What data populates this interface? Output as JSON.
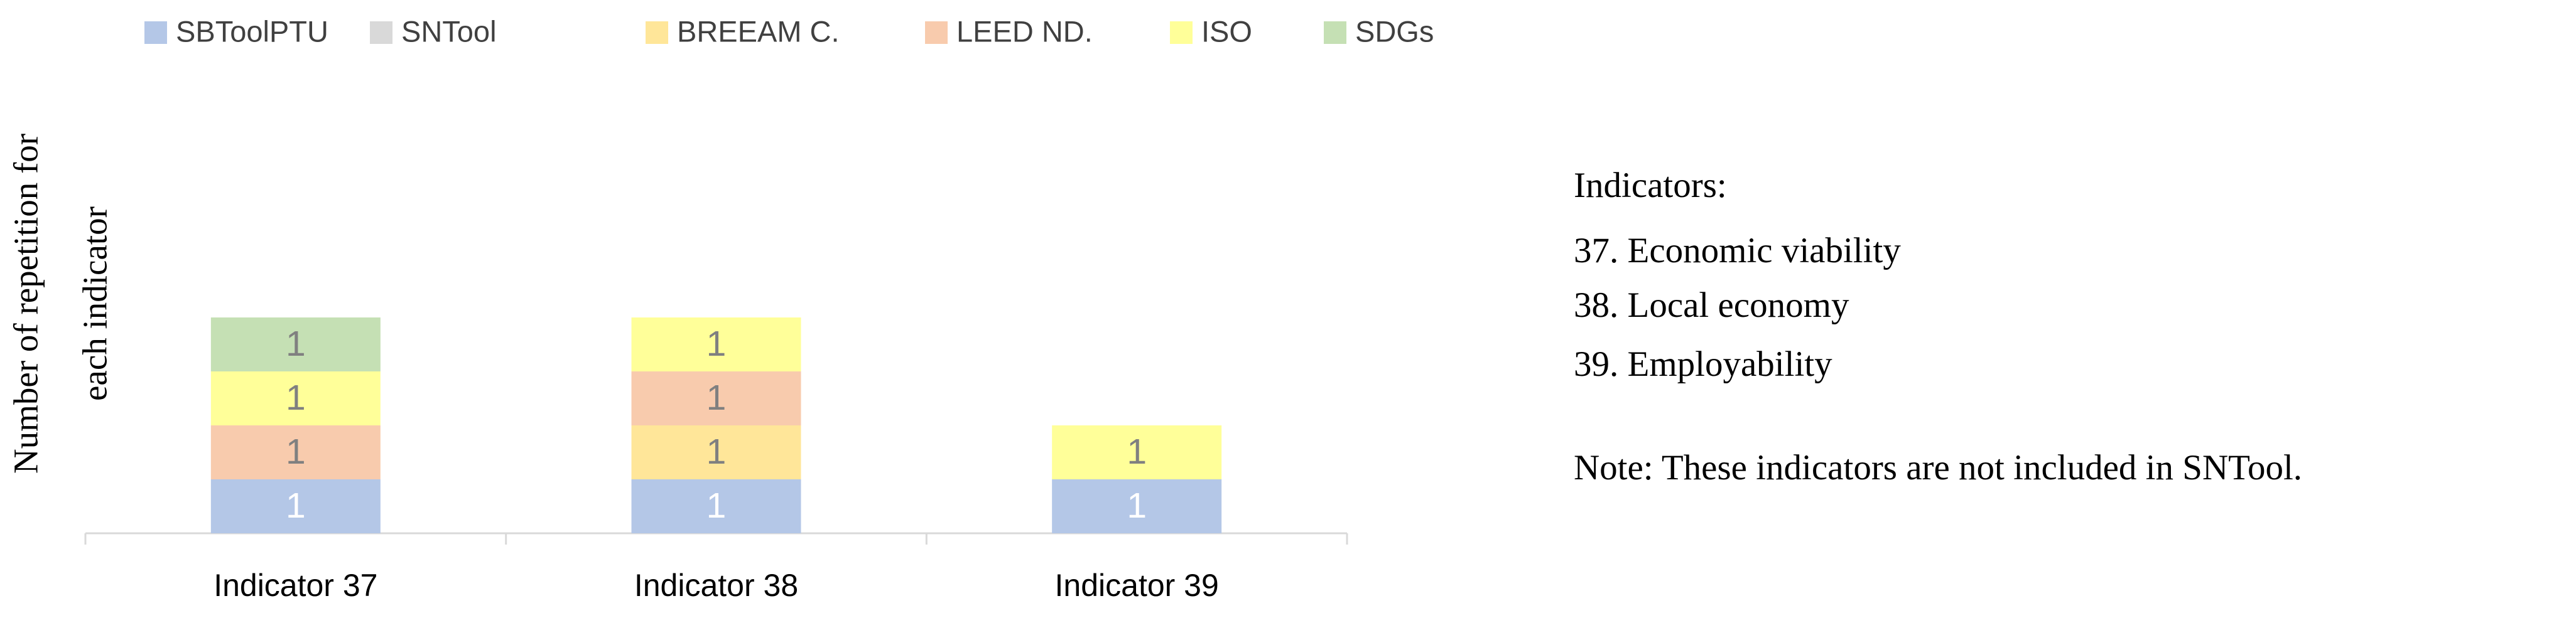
{
  "chart_data": {
    "type": "stacked_bar",
    "y_label": [
      "Number of repetition for",
      "each indicator"
    ],
    "categories": [
      "Indicator 37",
      "Indicator 38",
      "Indicator 39"
    ],
    "series": [
      {
        "name": "SBToolPTU",
        "color": "#b4c7e7",
        "values": [
          1,
          1,
          1
        ]
      },
      {
        "name": "SNTool",
        "color": "#d9d9d9",
        "values": [
          null,
          null,
          null
        ]
      },
      {
        "name": "BREEAM C.",
        "color": "#ffe699",
        "values": [
          null,
          1,
          null
        ]
      },
      {
        "name": "LEED ND.",
        "color": "#f8cbad",
        "values": [
          1,
          1,
          null
        ]
      },
      {
        "name": "ISO",
        "color": "#ffff99",
        "values": [
          1,
          1,
          1
        ]
      },
      {
        "name": "SDGs",
        "color": "#c5e0b4",
        "values": [
          1,
          null,
          null
        ]
      }
    ],
    "ylim": [
      0,
      8
    ],
    "legend": "top",
    "annotations": [
      "Indicators:",
      "37. Economic viability",
      "38. Local economy",
      "39. Employability",
      "Note: These indicators are not included in SNTool."
    ]
  }
}
